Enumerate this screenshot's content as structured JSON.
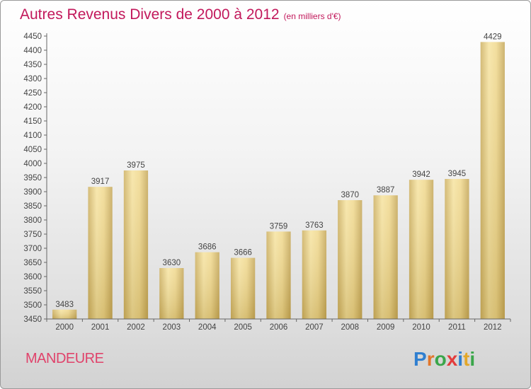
{
  "chart_data": {
    "type": "bar",
    "title": "Autres Revenus Divers de 2000 à 2012",
    "subtitle": "(en milliers d'€)",
    "categories": [
      "2000",
      "2001",
      "2002",
      "2003",
      "2004",
      "2005",
      "2006",
      "2007",
      "2008",
      "2009",
      "2010",
      "2011",
      "2012"
    ],
    "values": [
      3483,
      3917,
      3975,
      3630,
      3686,
      3666,
      3759,
      3763,
      3870,
      3887,
      3942,
      3945,
      4429
    ],
    "ylim": [
      3450,
      4450
    ],
    "ytick_step": 50,
    "grid": false,
    "legend": "none",
    "colors": {
      "bar_light": "#f3dc94",
      "bar_dark": "#c9ac5c",
      "title": "#c2185b"
    }
  },
  "footer": {
    "city": "MANDEURE",
    "logo_text": "Proxiti"
  }
}
